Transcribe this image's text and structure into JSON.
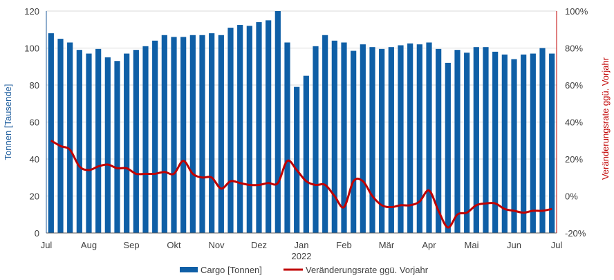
{
  "chart_data": {
    "type": "bar+line",
    "x_tick_labels": [
      "Jul",
      "Aug",
      "Sep",
      "Okt",
      "Nov",
      "Dez",
      "Jan",
      "Feb",
      "Mär",
      "Apr",
      "Mai",
      "Jun",
      "Jul"
    ],
    "year_label": "2022",
    "left_axis": {
      "title": "Tonnen [Tausende]",
      "min": 0,
      "max": 120,
      "step": 20,
      "color": "#1f5e9e"
    },
    "right_axis": {
      "title": "Veränderungsrate ggü. Vorjahr",
      "min": -20,
      "max": 100,
      "step": 20,
      "unit": "%",
      "color": "#c00000"
    },
    "series": [
      {
        "name": "Cargo [Tonnen]",
        "type": "bar",
        "axis": "left",
        "color": "#0f5fa6",
        "values": [
          108,
          105,
          103,
          99,
          97,
          99.5,
          95,
          93,
          97,
          99,
          101,
          104,
          107,
          106,
          106,
          107,
          107,
          108,
          107,
          111,
          112.5,
          112,
          114,
          115,
          120,
          103,
          79,
          85,
          101,
          107,
          104,
          103,
          98.5,
          102,
          100.5,
          99.5,
          100.5,
          101.5,
          102.5,
          102,
          103,
          99.5,
          92,
          99,
          97.5,
          100.5,
          100.5,
          98,
          96.5,
          94,
          96.5,
          97,
          100,
          97
        ]
      },
      {
        "name": "Veränderungsrate ggü. Vorjahr",
        "type": "line",
        "axis": "right",
        "color": "#c00000",
        "values": [
          30,
          27,
          25,
          16,
          14,
          16,
          17,
          15,
          15,
          12,
          12,
          12,
          13,
          12,
          19,
          12,
          10,
          10,
          4,
          8,
          7,
          6,
          6,
          7,
          7,
          19,
          14,
          8,
          6,
          6,
          0,
          -6,
          8,
          8,
          0,
          -5,
          -6,
          -5,
          -5,
          -3,
          3,
          -8,
          -17,
          -10,
          -9,
          -5,
          -4,
          -4,
          -7,
          -8,
          -9,
          -8,
          -8,
          -7
        ]
      }
    ],
    "legend": {
      "position": "bottom-center",
      "entries": [
        "Cargo [Tonnen]",
        "Veränderungsrate ggü. Vorjahr"
      ]
    },
    "grid": true
  }
}
